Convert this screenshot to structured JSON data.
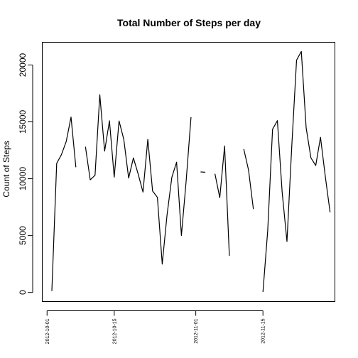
{
  "chart_data": {
    "type": "line",
    "title": "Total Number of Steps per day",
    "xlabel": "",
    "ylabel": "Count of Steps",
    "x_ticks": [
      "2012-10-01",
      "2012-10-15",
      "2012-11-01",
      "2012-11-15"
    ],
    "y_ticks": [
      0,
      5000,
      10000,
      15000,
      20000
    ],
    "xlim": [
      "2012-09-30",
      "2012-11-30"
    ],
    "ylim": [
      -800,
      22000
    ],
    "grid": false,
    "series": [
      {
        "values": [
          [
            "2012-10-01",
            null
          ],
          [
            "2012-10-02",
            126
          ],
          [
            "2012-10-03",
            11352
          ],
          [
            "2012-10-04",
            12116
          ],
          [
            "2012-10-05",
            13294
          ],
          [
            "2012-10-06",
            15420
          ],
          [
            "2012-10-07",
            11015
          ],
          [
            "2012-10-08",
            null
          ],
          [
            "2012-10-09",
            12811
          ],
          [
            "2012-10-10",
            9900
          ],
          [
            "2012-10-11",
            10304
          ],
          [
            "2012-10-12",
            17382
          ],
          [
            "2012-10-13",
            12426
          ],
          [
            "2012-10-14",
            15098
          ],
          [
            "2012-10-15",
            10139
          ],
          [
            "2012-10-16",
            15084
          ],
          [
            "2012-10-17",
            13452
          ],
          [
            "2012-10-18",
            10056
          ],
          [
            "2012-10-19",
            11829
          ],
          [
            "2012-10-20",
            10395
          ],
          [
            "2012-10-21",
            8821
          ],
          [
            "2012-10-22",
            13460
          ],
          [
            "2012-10-23",
            8918
          ],
          [
            "2012-10-24",
            8355
          ],
          [
            "2012-10-25",
            2492
          ],
          [
            "2012-10-26",
            6778
          ],
          [
            "2012-10-27",
            10119
          ],
          [
            "2012-10-28",
            11458
          ],
          [
            "2012-10-29",
            5018
          ],
          [
            "2012-10-30",
            9819
          ],
          [
            "2012-10-31",
            15414
          ],
          [
            "2012-11-01",
            null
          ],
          [
            "2012-11-02",
            10600
          ],
          [
            "2012-11-03",
            10571
          ],
          [
            "2012-11-04",
            null
          ],
          [
            "2012-11-05",
            10439
          ],
          [
            "2012-11-06",
            8334
          ],
          [
            "2012-11-07",
            12883
          ],
          [
            "2012-11-08",
            3219
          ],
          [
            "2012-11-09",
            null
          ],
          [
            "2012-11-10",
            null
          ],
          [
            "2012-11-11",
            12608
          ],
          [
            "2012-11-12",
            10765
          ],
          [
            "2012-11-13",
            7336
          ],
          [
            "2012-11-14",
            null
          ],
          [
            "2012-11-15",
            41
          ],
          [
            "2012-11-16",
            5441
          ],
          [
            "2012-11-17",
            14339
          ],
          [
            "2012-11-18",
            15110
          ],
          [
            "2012-11-19",
            8841
          ],
          [
            "2012-11-20",
            4472
          ],
          [
            "2012-11-21",
            12787
          ],
          [
            "2012-11-22",
            20427
          ],
          [
            "2012-11-23",
            21194
          ],
          [
            "2012-11-24",
            14478
          ],
          [
            "2012-11-25",
            11834
          ],
          [
            "2012-11-26",
            11162
          ],
          [
            "2012-11-27",
            13646
          ],
          [
            "2012-11-28",
            10183
          ],
          [
            "2012-11-29",
            7047
          ]
        ]
      }
    ]
  }
}
